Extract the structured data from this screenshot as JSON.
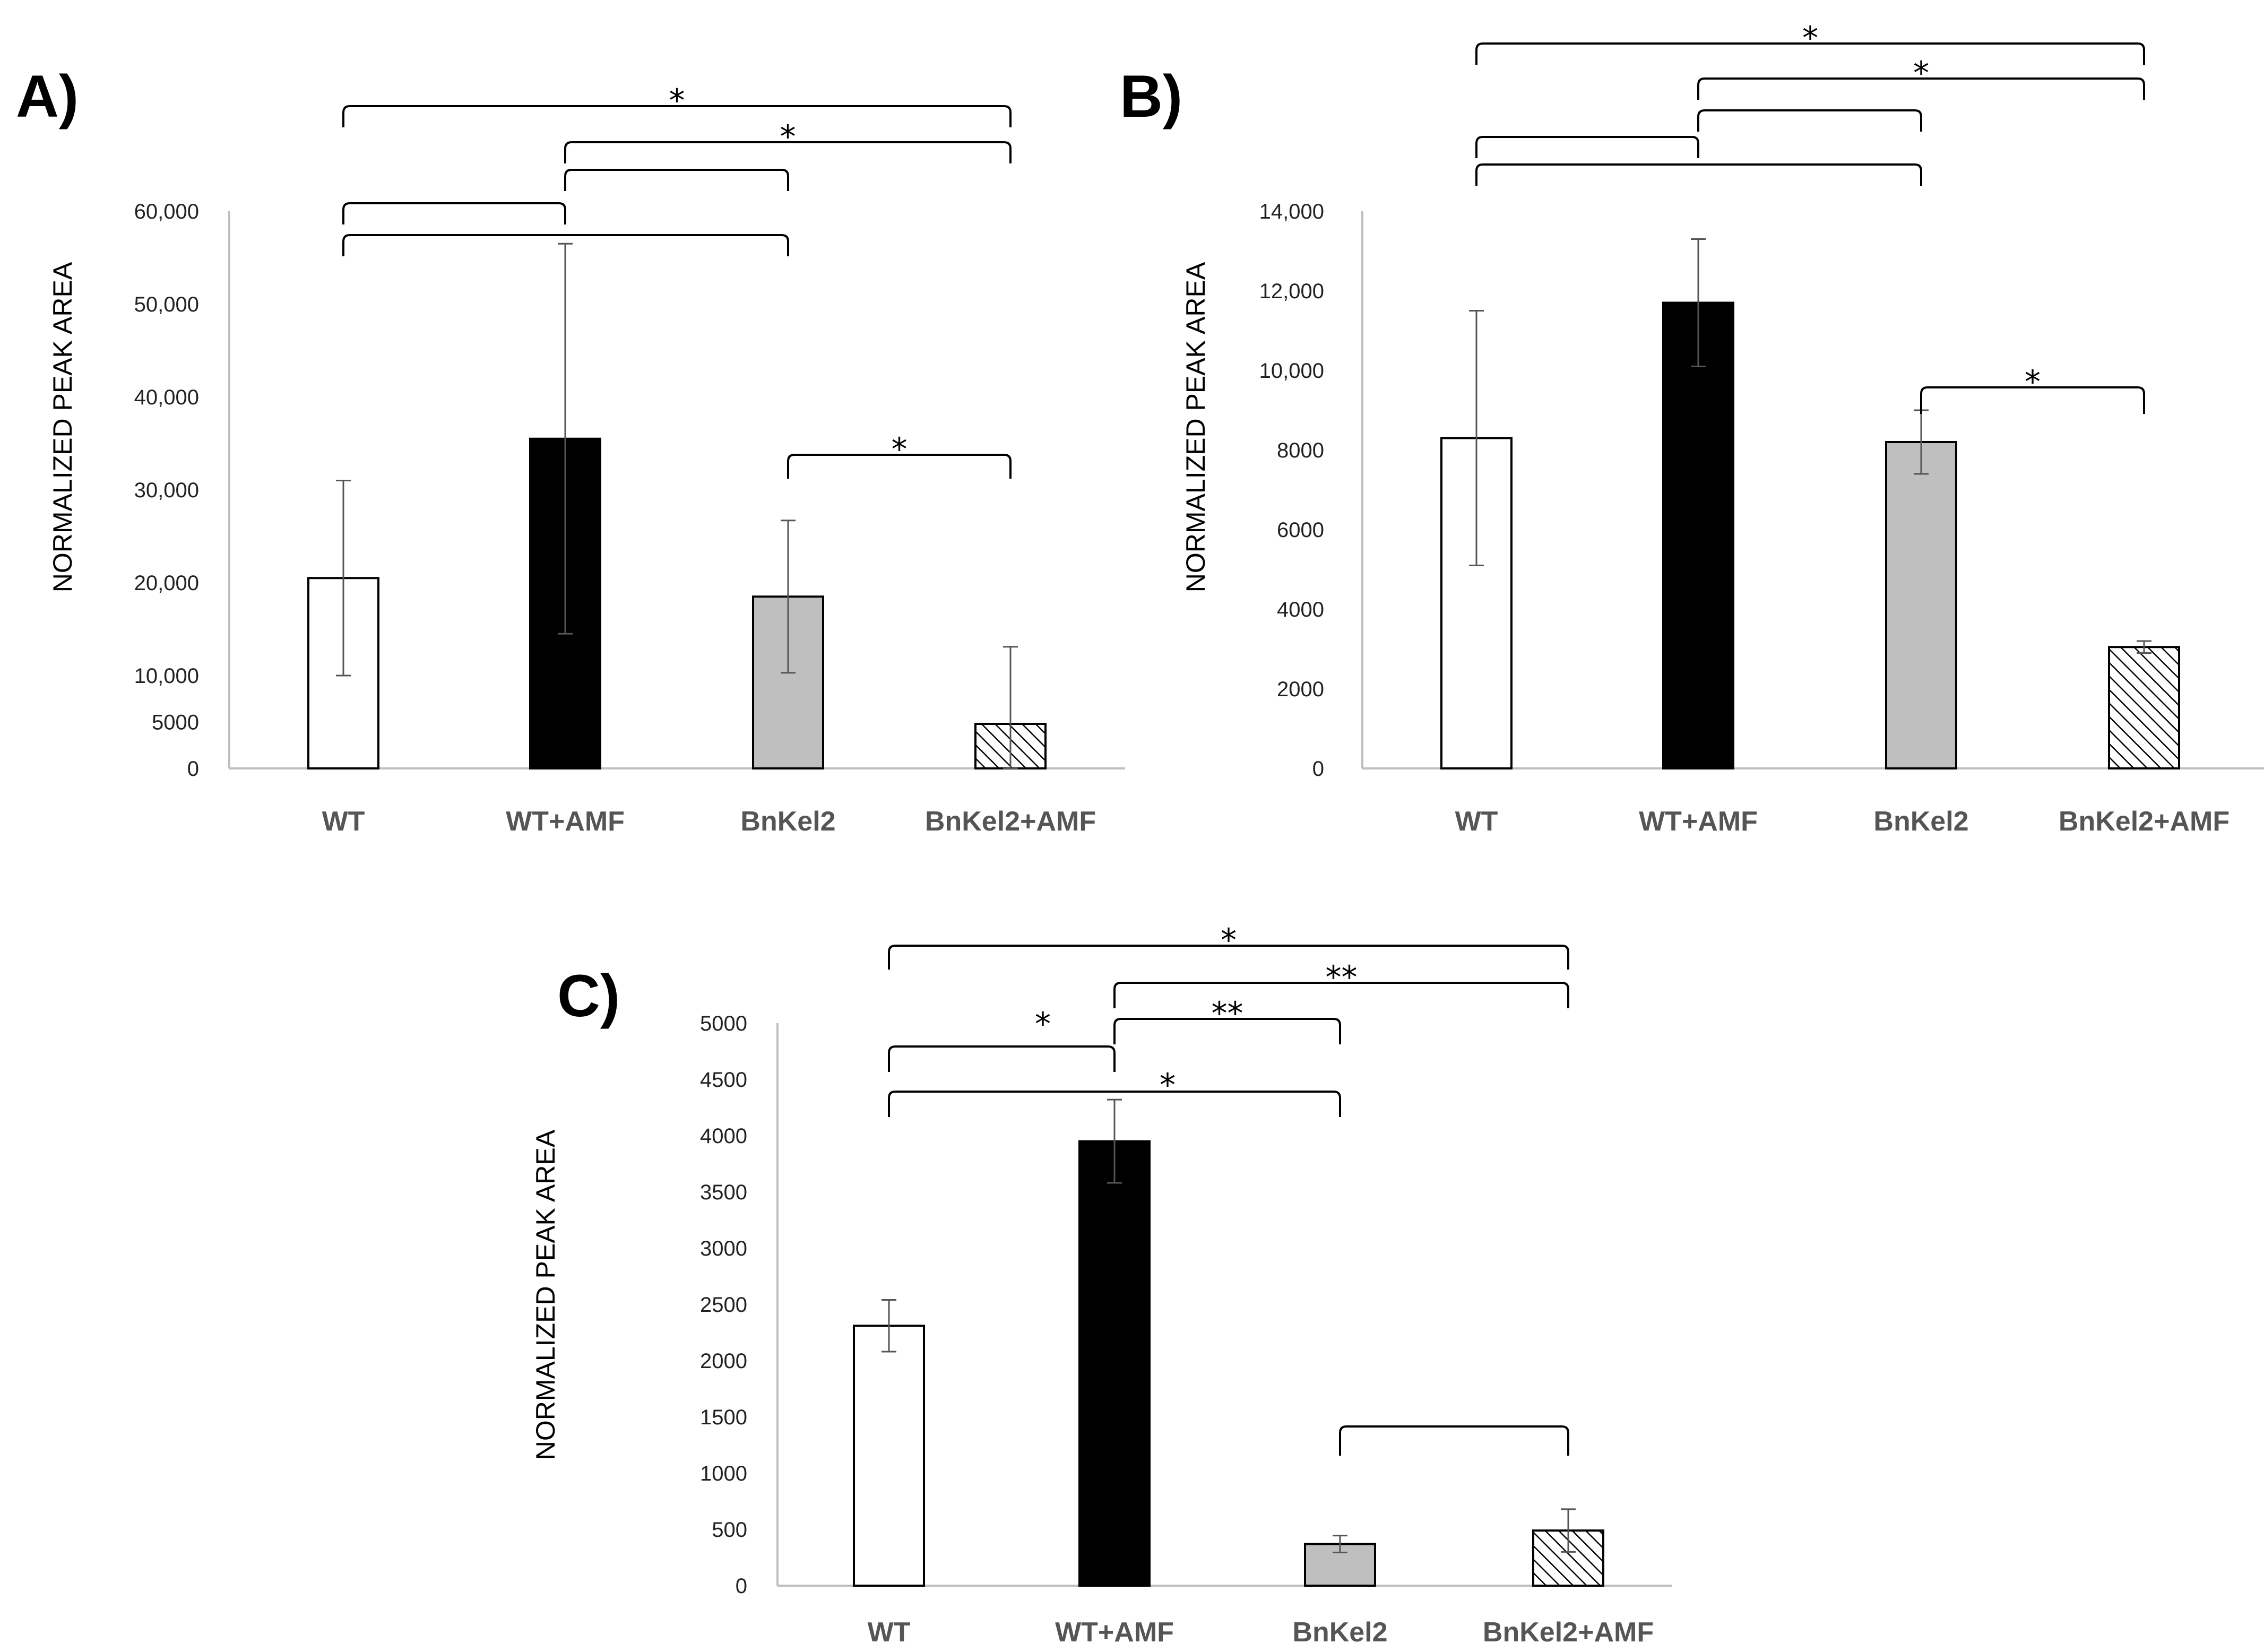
{
  "figure": {
    "panel_count": 3
  },
  "chart_data": [
    {
      "panel": "A)",
      "type": "bar",
      "categories": [
        "WT",
        "WT+AMF",
        "BnKel2",
        "BnKel2+AMF"
      ],
      "values": [
        20500,
        35500,
        18500,
        4800
      ],
      "errors": [
        10500,
        21000,
        8200,
        8300
      ],
      "fills": [
        "white",
        "black",
        "gray",
        "hatch"
      ],
      "ylabel": "NORMALIZED PEAK AREA",
      "ylim": [
        0,
        60000
      ],
      "yticks": [
        {
          "v": 0,
          "label": "0"
        },
        {
          "v": 5000,
          "label": "5000"
        },
        {
          "v": 10000,
          "label": "10,000"
        },
        {
          "v": 20000,
          "label": "20,000"
        },
        {
          "v": 30000,
          "label": "30,000"
        },
        {
          "v": 40000,
          "label": "40,000"
        },
        {
          "v": 50000,
          "label": "50,000"
        },
        {
          "v": 60000,
          "label": "60,000"
        }
      ],
      "comparisons": [
        {
          "from": 0,
          "to": 3,
          "label": "*"
        },
        {
          "from": 1,
          "to": 3,
          "label": "*"
        },
        {
          "from": 1,
          "to": 2,
          "label": ""
        },
        {
          "from": 0,
          "to": 1,
          "label": ""
        },
        {
          "from": 0,
          "to": 2,
          "label": ""
        },
        {
          "from": 2,
          "to": 3,
          "label": "*"
        }
      ]
    },
    {
      "panel": "B)",
      "type": "bar",
      "categories": [
        "WT",
        "WT+AMF",
        "BnKel2",
        "BnKel2+AMF"
      ],
      "values": [
        8300,
        11700,
        8200,
        3050
      ],
      "errors": [
        3200,
        1600,
        800,
        150
      ],
      "fills": [
        "white",
        "black",
        "gray",
        "hatch"
      ],
      "ylabel": "NORMALIZED PEAK AREA",
      "ylim": [
        0,
        14000
      ],
      "yticks": [
        {
          "v": 0,
          "label": "0"
        },
        {
          "v": 2000,
          "label": "2000"
        },
        {
          "v": 4000,
          "label": "4000"
        },
        {
          "v": 6000,
          "label": "6000"
        },
        {
          "v": 8000,
          "label": "8000"
        },
        {
          "v": 10000,
          "label": "10,000"
        },
        {
          "v": 12000,
          "label": "12,000"
        },
        {
          "v": 14000,
          "label": "14,000"
        }
      ],
      "comparisons": [
        {
          "from": 0,
          "to": 3,
          "label": "*"
        },
        {
          "from": 1,
          "to": 3,
          "label": "*"
        },
        {
          "from": 1,
          "to": 2,
          "label": ""
        },
        {
          "from": 0,
          "to": 1,
          "label": ""
        },
        {
          "from": 0,
          "to": 2,
          "label": ""
        },
        {
          "from": 2,
          "to": 3,
          "label": "*"
        }
      ]
    },
    {
      "panel": "C)",
      "type": "bar",
      "categories": [
        "WT",
        "WT+AMF",
        "BnKel2",
        "BnKel2+AMF"
      ],
      "values": [
        2310,
        3950,
        370,
        490
      ],
      "errors": [
        230,
        370,
        75,
        190
      ],
      "fills": [
        "white",
        "black",
        "gray",
        "hatch"
      ],
      "ylabel": "NORMALIZED PEAK AREA",
      "ylim": [
        0,
        5000
      ],
      "yticks": [
        {
          "v": 0,
          "label": "0"
        },
        {
          "v": 500,
          "label": "500"
        },
        {
          "v": 1000,
          "label": "1000"
        },
        {
          "v": 1500,
          "label": "1500"
        },
        {
          "v": 2000,
          "label": "2000"
        },
        {
          "v": 2500,
          "label": "2500"
        },
        {
          "v": 3000,
          "label": "3000"
        },
        {
          "v": 3500,
          "label": "3500"
        },
        {
          "v": 4000,
          "label": "4000"
        },
        {
          "v": 4500,
          "label": "4500"
        },
        {
          "v": 5000,
          "label": "5000"
        }
      ],
      "comparisons": [
        {
          "from": 0,
          "to": 3,
          "label": "*"
        },
        {
          "from": 1,
          "to": 3,
          "label": "**"
        },
        {
          "from": 1,
          "to": 2,
          "label": "**"
        },
        {
          "from": 0,
          "to": 1,
          "label": "*"
        },
        {
          "from": 0,
          "to": 2,
          "label": "*"
        },
        {
          "from": 2,
          "to": 3,
          "label": ""
        }
      ]
    }
  ]
}
